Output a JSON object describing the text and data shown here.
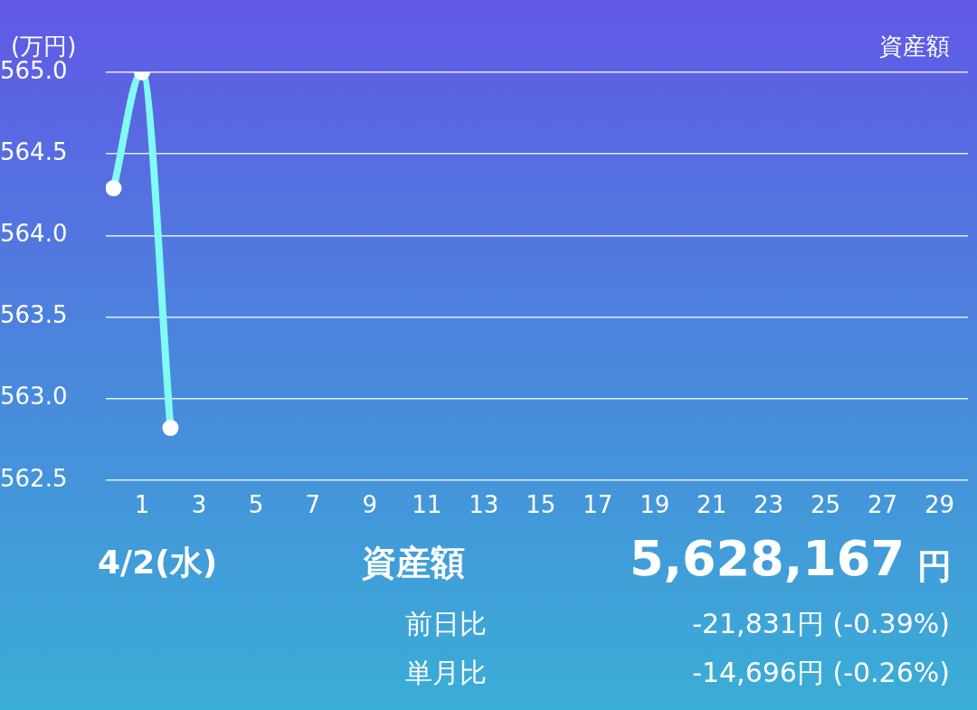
{
  "chart_data": {
    "type": "line",
    "title": "資産額",
    "ylabel": "(万円)",
    "x": [
      0,
      1,
      2
    ],
    "series": [
      {
        "color": "#80fbf3",
        "values": [
          564.29,
          565.0,
          562.82
        ]
      }
    ],
    "xlim": [
      -0.27,
      30
    ],
    "xticks": [
      1,
      3,
      5,
      7,
      9,
      11,
      13,
      15,
      17,
      19,
      21,
      23,
      25,
      27,
      29
    ],
    "ylim": [
      562.5,
      565.0
    ],
    "yticks": [
      {
        "value": 562.5,
        "label": "562.5"
      },
      {
        "value": 563,
        "label": "563.0"
      },
      {
        "value": 563.5,
        "label": "563.5"
      },
      {
        "value": 564,
        "label": "564.0"
      },
      {
        "value": 564.5,
        "label": "564.5"
      },
      {
        "value": 565,
        "label": "565.0"
      }
    ],
    "grid": "y",
    "marker": "circle",
    "line_style": "solid",
    "annotations": [
      "4/2(水)",
      "資産額",
      "5,628,167",
      "円",
      "前日比",
      "-21,831円 (-0.39%)",
      "単月比",
      "-14,696円 (-0.26%)"
    ]
  }
}
